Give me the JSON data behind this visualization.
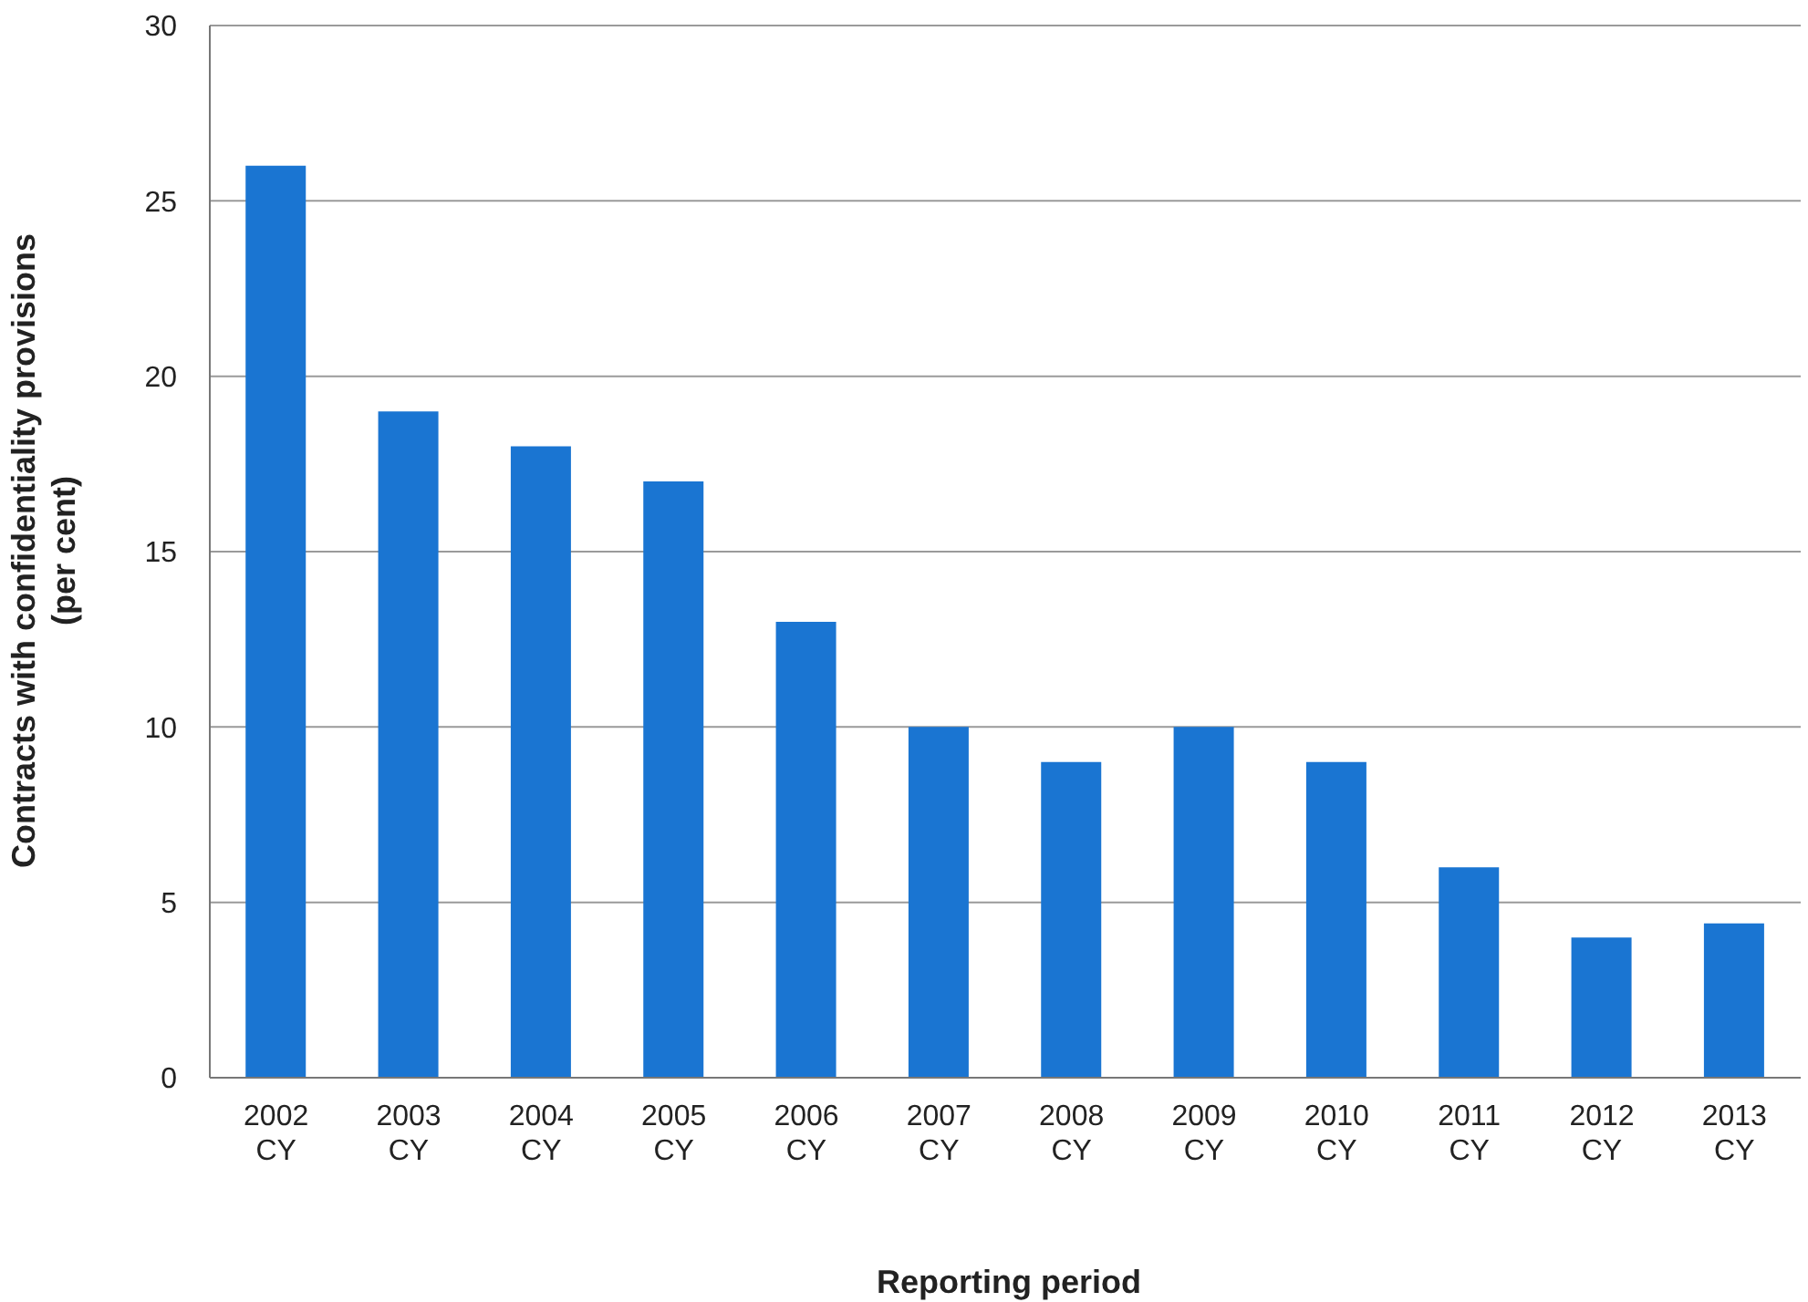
{
  "chart_data": {
    "type": "bar",
    "xlabel": "Reporting period",
    "ylabel": "Contracts with confidentiality provisions\n(per cent)",
    "categories": [
      "2002 CY",
      "2003 CY",
      "2004 CY",
      "2005 CY",
      "2006 CY",
      "2007 CY",
      "2008 CY",
      "2009 CY",
      "2010 CY",
      "2011 CY",
      "2012 CY",
      "2013 CY"
    ],
    "values": [
      26,
      19,
      18,
      17,
      13,
      10,
      9,
      10,
      9,
      6,
      4,
      4.4
    ],
    "color": "#1a75d2",
    "ylim": [
      0,
      30
    ],
    "yticks": [
      0,
      5,
      10,
      15,
      20,
      25,
      30
    ],
    "grid": "y"
  }
}
